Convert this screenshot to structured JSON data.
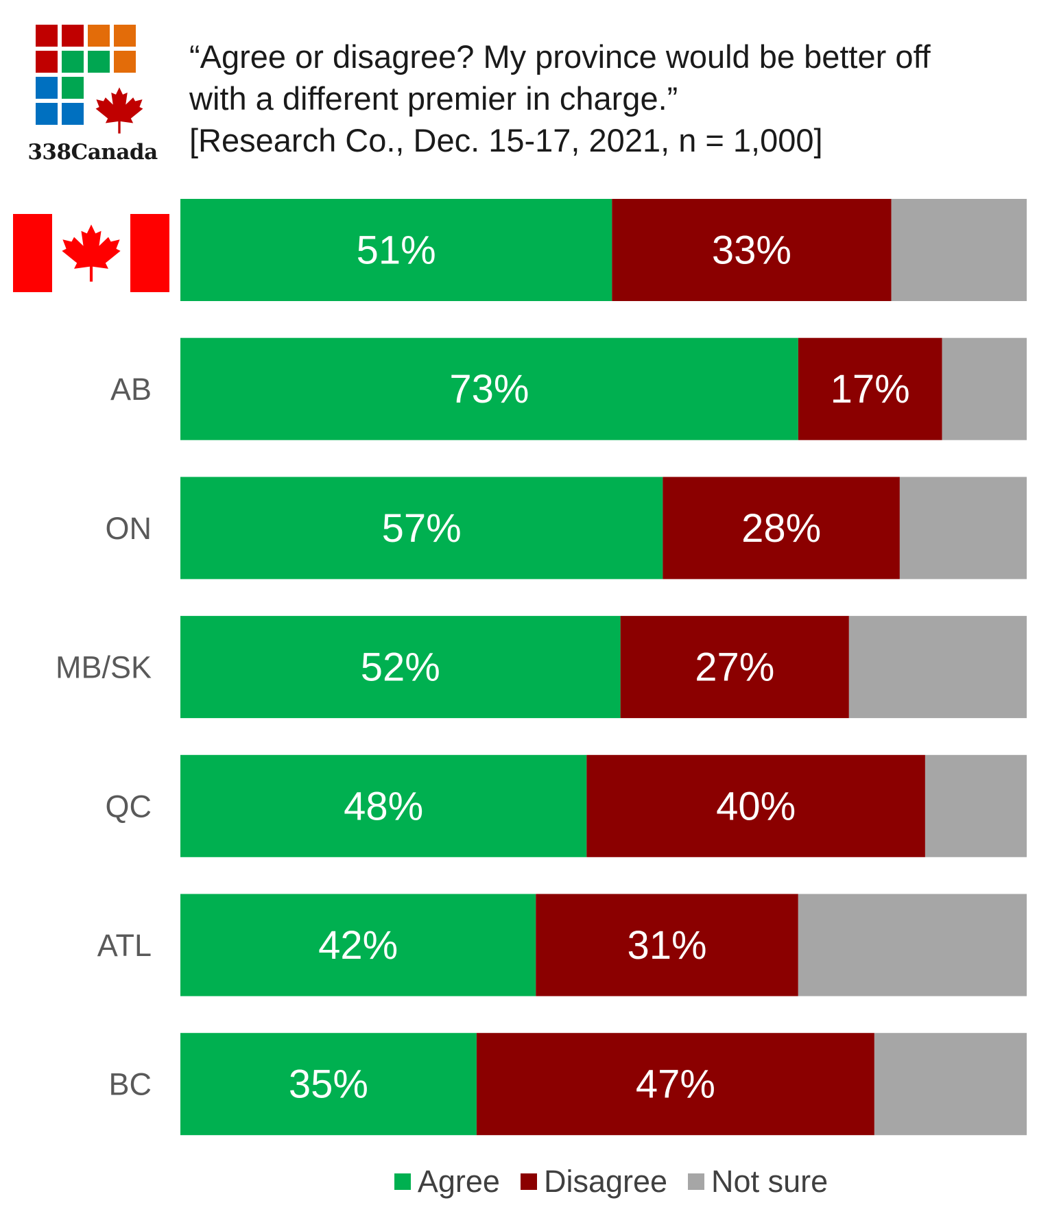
{
  "logo": {
    "text": "338Canada"
  },
  "title_lines": [
    "“Agree or disagree? My province would be better off",
    "with a different premier in charge.”",
    "[Research Co., Dec. 15-17, 2021, n = 1,000]"
  ],
  "colors": {
    "agree": "#00b050",
    "disagree": "#8b0000",
    "not_sure": "#a6a6a6",
    "flag_red": "#ff0000"
  },
  "chart_data": {
    "type": "bar",
    "orientation": "horizontal",
    "stacked": true,
    "categories": [
      "Canada",
      "AB",
      "ON",
      "MB/SK",
      "QC",
      "ATL",
      "BC"
    ],
    "category_labels": [
      "",
      "AB",
      "ON",
      "MB/SK",
      "QC",
      "ATL",
      "BC"
    ],
    "series": [
      {
        "name": "Agree",
        "values": [
          51,
          73,
          57,
          52,
          48,
          42,
          35
        ],
        "labels": [
          "51%",
          "73%",
          "57%",
          "52%",
          "48%",
          "42%",
          "35%"
        ]
      },
      {
        "name": "Disagree",
        "values": [
          33,
          17,
          28,
          27,
          40,
          31,
          47
        ],
        "labels": [
          "33%",
          "17%",
          "28%",
          "27%",
          "40%",
          "31%",
          "47%"
        ]
      },
      {
        "name": "Not sure",
        "values": [
          16,
          10,
          15,
          21,
          12,
          27,
          18
        ]
      }
    ],
    "xlim": [
      0,
      100
    ],
    "legend_position": "bottom"
  },
  "legend": [
    {
      "label": "Agree",
      "color": "#00b050"
    },
    {
      "label": "Disagree",
      "color": "#8b0000"
    },
    {
      "label": "Not sure",
      "color": "#a6a6a6"
    }
  ]
}
